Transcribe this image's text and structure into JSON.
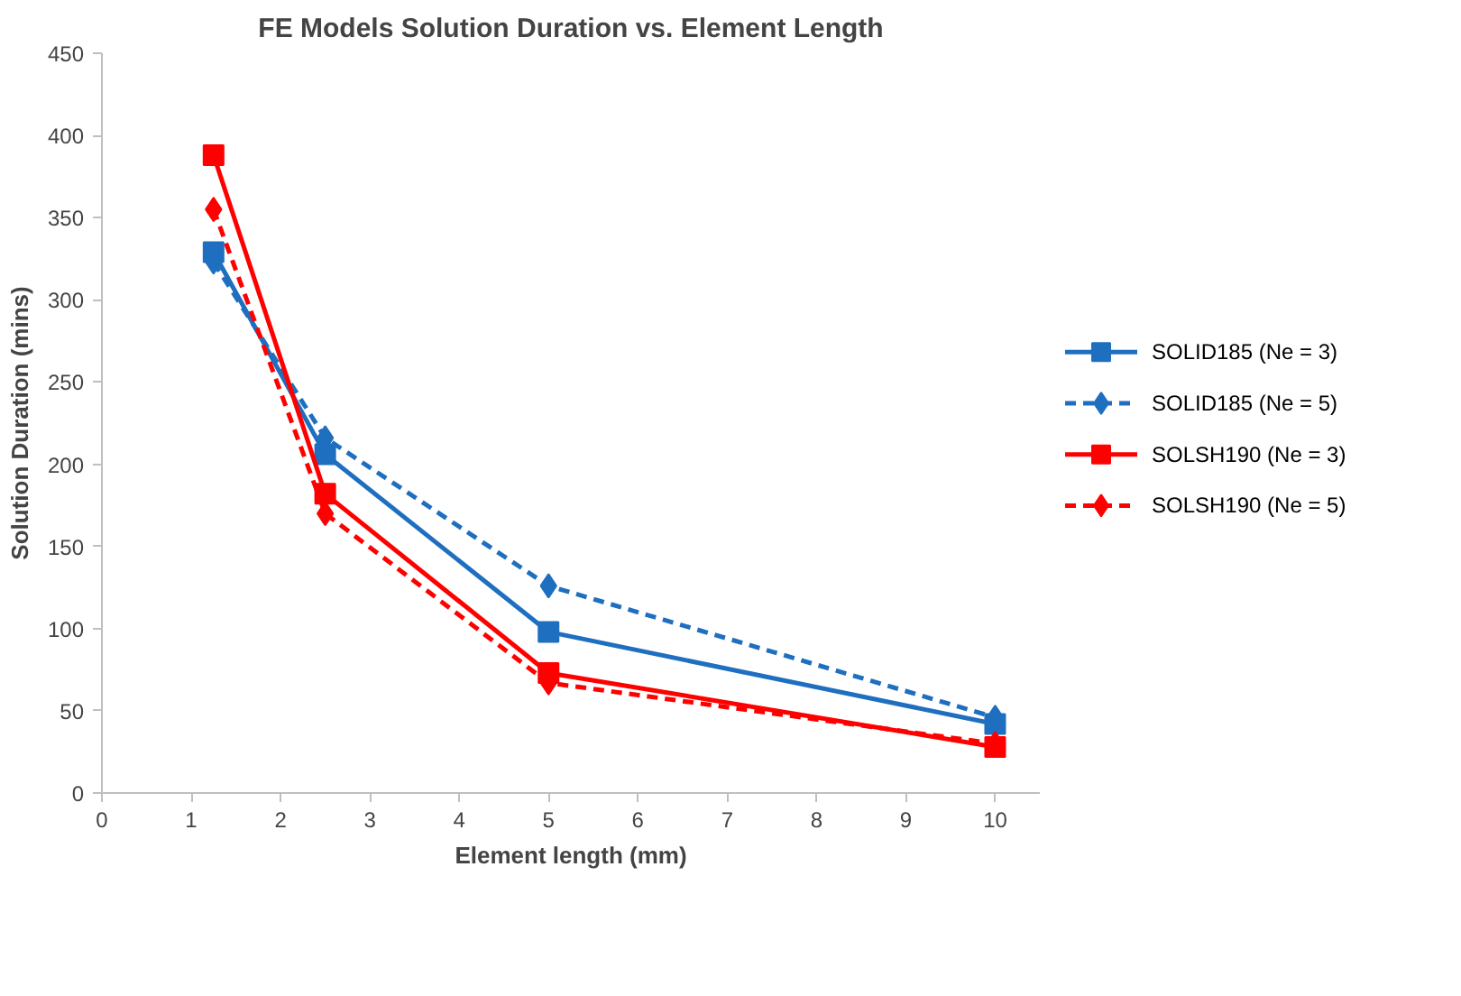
{
  "chart_data": {
    "type": "line",
    "title": "FE Models Solution Duration vs. Element Length",
    "xlabel": "Element length (mm)",
    "ylabel": "Solution Duration (mins)",
    "x": [
      1.25,
      2.5,
      5,
      10
    ],
    "series": [
      {
        "name": "SOLID185 (Ne = 3)",
        "color": "#1f6fc0",
        "values": [
          329,
          206,
          98,
          42
        ],
        "marker": "square",
        "line_style": "solid"
      },
      {
        "name": "SOLID185 (Ne = 5)",
        "color": "#1f6fc0",
        "values": [
          323,
          216,
          126,
          46
        ],
        "marker": "diamond",
        "line_style": "dashed"
      },
      {
        "name": "SOLSH190 (Ne = 3)",
        "color": "#ff0000",
        "values": [
          388,
          182,
          73,
          28
        ],
        "marker": "square",
        "line_style": "solid"
      },
      {
        "name": "SOLSH190 (Ne = 5)",
        "color": "#ff0000",
        "values": [
          355,
          170,
          67,
          30
        ],
        "marker": "diamond",
        "line_style": "dashed"
      }
    ],
    "xlim": [
      0,
      10.5
    ],
    "xticks": [
      0,
      1,
      2,
      3,
      4,
      5,
      6,
      7,
      8,
      9,
      10
    ],
    "ylim": [
      0,
      450
    ],
    "yticks": [
      0,
      50,
      100,
      150,
      200,
      250,
      300,
      350,
      400,
      450
    ],
    "grid": false,
    "legend": "right"
  }
}
